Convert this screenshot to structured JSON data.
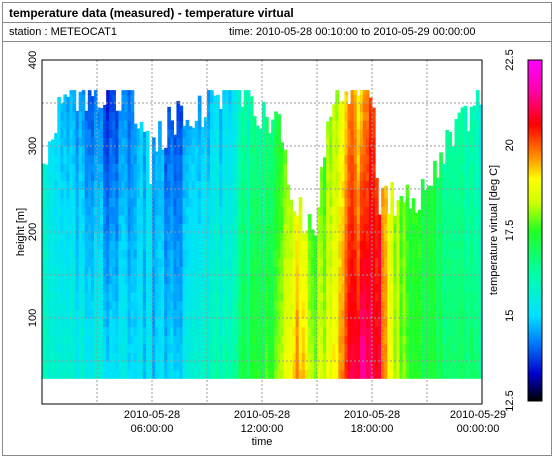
{
  "header": {
    "title": "temperature data (measured) - temperature virtual",
    "station": "station : METEOCAT1",
    "time_range": "time: 2010-05-28 00:10:00 to 2010-05-29 00:00:00"
  },
  "colors": {
    "frame": "#8a8a8a",
    "grid": "#9a9a9a",
    "background": "#ffffff"
  },
  "chart_data": {
    "type": "heatmap",
    "xlabel": "time",
    "ylabel": "height [m]",
    "colorbar_label": "temperature virtual [deg C]",
    "x_range": [
      "2010-05-28 00:00",
      "2010-05-29 00:00"
    ],
    "ylim": [
      0,
      400
    ],
    "x_ticks": [
      {
        "hour": 6,
        "line1": "2010-05-28",
        "line2": "06:00:00"
      },
      {
        "hour": 12,
        "line1": "2010-05-28",
        "line2": "12:00:00"
      },
      {
        "hour": 18,
        "line1": "2010-05-28",
        "line2": "18:00:00"
      },
      {
        "hour": 24,
        "line1": "2010-05-29",
        "line2": "00:00:00"
      }
    ],
    "y_ticks": [
      100,
      200,
      300,
      400
    ],
    "colorbar_range": [
      12.5,
      22.5
    ],
    "colorbar_ticks": [
      12.5,
      15,
      17.5,
      20,
      22.5
    ],
    "colorscale": [
      [
        12.5,
        "#000000"
      ],
      [
        13.3,
        "#0000cc"
      ],
      [
        14.3,
        "#0088ff"
      ],
      [
        15.0,
        "#00e0ff"
      ],
      [
        16.2,
        "#00ffaa"
      ],
      [
        17.5,
        "#22ff22"
      ],
      [
        18.3,
        "#ccff00"
      ],
      [
        19.0,
        "#ffff00"
      ],
      [
        19.6,
        "#ff9900"
      ],
      [
        20.6,
        "#ff0000"
      ],
      [
        21.6,
        "#ff00aa"
      ],
      [
        22.5,
        "#ff00ff"
      ]
    ],
    "height_bottom_m": 30,
    "time_step_min": 10,
    "profiles": [
      {
        "hour": 0.17,
        "top_m": 280,
        "bottom_C": 16.0,
        "top_C": 15.5
      },
      {
        "hour": 1.0,
        "top_m": 350,
        "bottom_C": 16.0,
        "top_C": 15.0
      },
      {
        "hour": 2.0,
        "top_m": 365,
        "bottom_C": 15.5,
        "top_C": 14.3
      },
      {
        "hour": 3.0,
        "top_m": 365,
        "bottom_C": 15.5,
        "top_C": 14.0
      },
      {
        "hour": 4.0,
        "top_m": 365,
        "bottom_C": 15.2,
        "top_C": 13.8
      },
      {
        "hour": 5.0,
        "top_m": 365,
        "bottom_C": 15.0,
        "top_C": 14.2
      },
      {
        "hour": 6.0,
        "top_m": 280,
        "bottom_C": 15.0,
        "top_C": 15.0
      },
      {
        "hour": 7.0,
        "top_m": 330,
        "bottom_C": 15.0,
        "top_C": 13.8
      },
      {
        "hour": 8.0,
        "top_m": 330,
        "bottom_C": 15.3,
        "top_C": 14.2
      },
      {
        "hour": 9.0,
        "top_m": 350,
        "bottom_C": 15.8,
        "top_C": 14.5
      },
      {
        "hour": 10.0,
        "top_m": 365,
        "bottom_C": 16.2,
        "top_C": 14.8
      },
      {
        "hour": 11.0,
        "top_m": 365,
        "bottom_C": 16.8,
        "top_C": 15.8
      },
      {
        "hour": 12.0,
        "top_m": 345,
        "bottom_C": 17.3,
        "top_C": 16.2
      },
      {
        "hour": 13.0,
        "top_m": 330,
        "bottom_C": 17.8,
        "top_C": 16.8
      },
      {
        "hour": 14.0,
        "top_m": 220,
        "bottom_C": 19.5,
        "top_C": 18.0
      },
      {
        "hour": 15.0,
        "top_m": 220,
        "bottom_C": 18.2,
        "top_C": 17.2
      },
      {
        "hour": 16.0,
        "top_m": 365,
        "bottom_C": 18.8,
        "top_C": 18.0
      },
      {
        "hour": 17.0,
        "top_m": 365,
        "bottom_C": 20.8,
        "top_C": 19.5
      },
      {
        "hour": 17.5,
        "top_m": 365,
        "bottom_C": 21.4,
        "top_C": 19.0
      },
      {
        "hour": 18.0,
        "top_m": 365,
        "bottom_C": 21.0,
        "top_C": 20.0
      },
      {
        "hour": 18.5,
        "top_m": 230,
        "bottom_C": 20.6,
        "top_C": 20.3
      },
      {
        "hour": 19.0,
        "top_m": 240,
        "bottom_C": 18.8,
        "top_C": 18.2
      },
      {
        "hour": 20.0,
        "top_m": 250,
        "bottom_C": 17.5,
        "top_C": 17.5
      },
      {
        "hour": 21.0,
        "top_m": 235,
        "bottom_C": 17.3,
        "top_C": 17.5
      },
      {
        "hour": 22.0,
        "top_m": 300,
        "bottom_C": 17.0,
        "top_C": 16.5
      },
      {
        "hour": 23.0,
        "top_m": 330,
        "bottom_C": 16.8,
        "top_C": 16.0
      },
      {
        "hour": 24.0,
        "top_m": 360,
        "bottom_C": 16.5,
        "top_C": 15.5
      }
    ]
  }
}
